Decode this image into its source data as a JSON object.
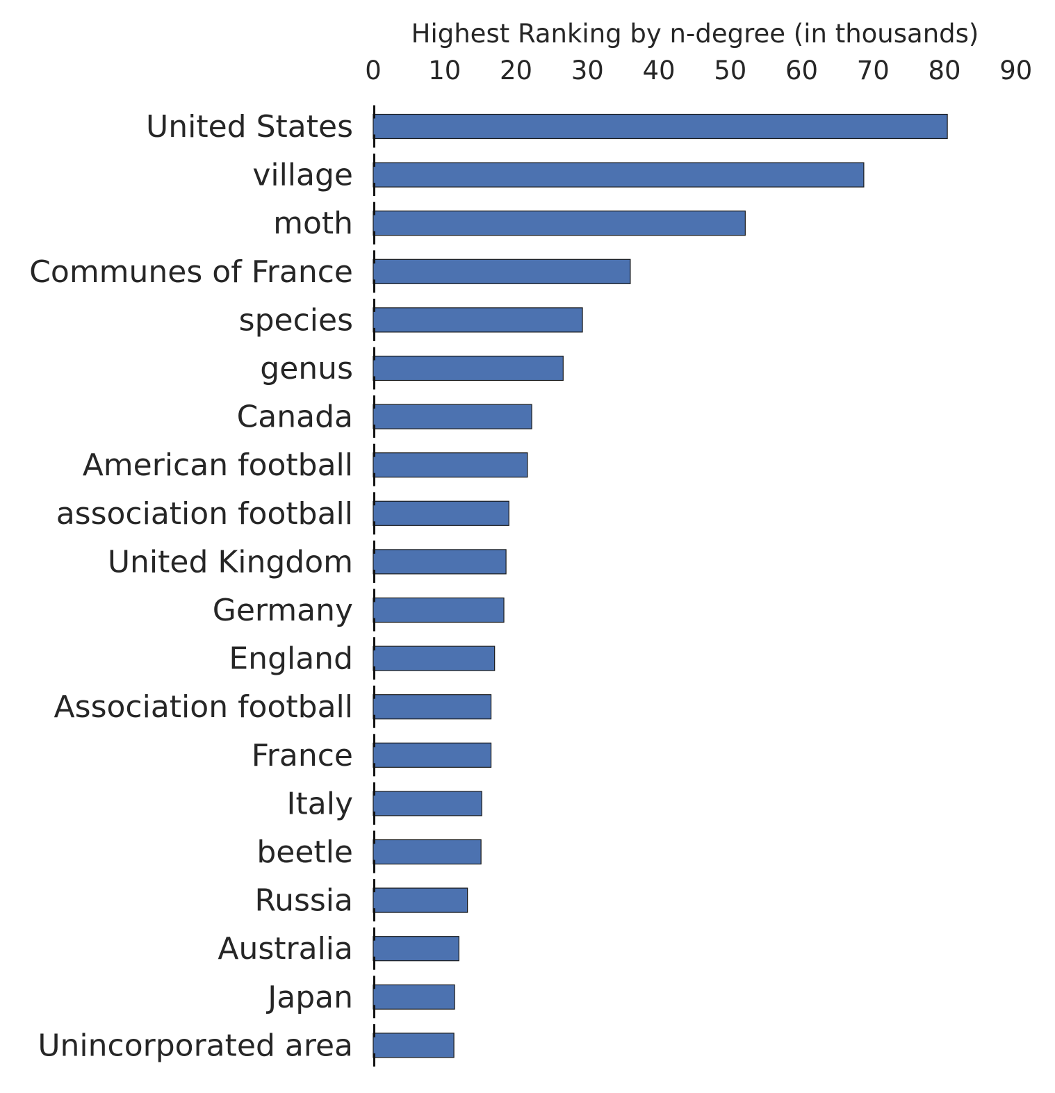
{
  "chart_data": {
    "type": "bar",
    "orientation": "horizontal",
    "xlabel": "Highest Ranking by n-degree (in thousands)",
    "xlabel_position": "top",
    "xlim": [
      0,
      90
    ],
    "xticks": [
      0,
      10,
      20,
      30,
      40,
      50,
      60,
      70,
      80,
      90
    ],
    "grid": false,
    "bar_color": "#4c72b0",
    "bar_edge_color": "#1a1a1a",
    "categories": [
      "United States",
      "village",
      "moth",
      "Communes of France",
      "species",
      "genus",
      "Canada",
      "American football",
      "association football",
      "United Kingdom",
      "Germany",
      "England",
      "Association football",
      "France",
      "Italy",
      "beetle",
      "Russia",
      "Australia",
      "Japan",
      "Unincorporated area"
    ],
    "values": [
      80.4,
      68.7,
      52.1,
      36.0,
      29.3,
      26.6,
      22.2,
      21.6,
      19.0,
      18.6,
      18.3,
      17.0,
      16.5,
      16.5,
      15.2,
      15.1,
      13.2,
      12.0,
      11.4,
      11.3
    ]
  }
}
